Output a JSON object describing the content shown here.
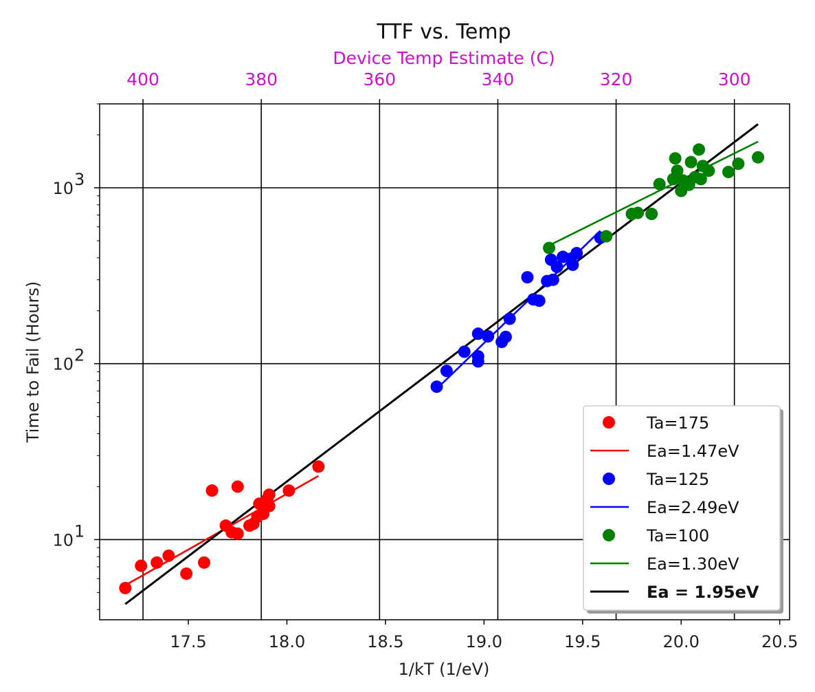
{
  "chart_data": {
    "type": "scatter",
    "title": "TTF vs. Temp",
    "xlabel": "1/kT  (1/eV)",
    "ylabel": "Time to Fail (Hours)",
    "x_range": [
      17.05,
      20.55
    ],
    "y_range": [
      3.5,
      3000
    ],
    "y_scale": "log",
    "x_ticks": [
      "17.5",
      "18.0",
      "18.5",
      "19.0",
      "19.5",
      "20.0",
      "20.5"
    ],
    "y_ticks": [
      {
        "value": 10,
        "base": "10",
        "exp": "1"
      },
      {
        "value": 100,
        "base": "10",
        "exp": "2"
      },
      {
        "value": 1000,
        "base": "10",
        "exp": "3"
      }
    ],
    "top_axis": {
      "label": "Device Temp Estimate (C)",
      "color": "#cc11cc",
      "ticks": [
        {
          "label": "400",
          "x": 17.27
        },
        {
          "label": "380",
          "x": 17.87
        },
        {
          "label": "360",
          "x": 18.47
        },
        {
          "label": "340",
          "x": 19.07
        },
        {
          "label": "320",
          "x": 19.67
        },
        {
          "label": "300",
          "x": 20.27
        }
      ]
    },
    "grid": true,
    "legend_position": "lower right",
    "series": [
      {
        "name": "Ta=175",
        "color": "#ff0000",
        "points": [
          [
            17.18,
            5.3
          ],
          [
            17.26,
            7.1
          ],
          [
            17.34,
            7.4
          ],
          [
            17.4,
            8.1
          ],
          [
            17.49,
            6.4
          ],
          [
            17.58,
            7.4
          ],
          [
            17.62,
            19.0
          ],
          [
            17.69,
            12.0
          ],
          [
            17.72,
            11.0
          ],
          [
            17.75,
            10.8
          ],
          [
            17.75,
            20.0
          ],
          [
            17.81,
            12.0
          ],
          [
            17.83,
            12.3
          ],
          [
            17.85,
            13.5
          ],
          [
            17.86,
            16.0
          ],
          [
            17.88,
            14.0
          ],
          [
            17.9,
            17.0
          ],
          [
            17.91,
            18.0
          ],
          [
            17.91,
            15.5
          ],
          [
            18.01,
            19.0
          ],
          [
            18.16,
            26.0
          ]
        ]
      },
      {
        "name": "Ta=125",
        "color": "#0000ff",
        "points": [
          [
            18.76,
            74
          ],
          [
            18.81,
            91
          ],
          [
            18.9,
            117
          ],
          [
            18.97,
            103
          ],
          [
            18.97,
            110
          ],
          [
            18.97,
            148
          ],
          [
            19.02,
            143
          ],
          [
            19.09,
            133
          ],
          [
            19.11,
            142
          ],
          [
            19.13,
            180
          ],
          [
            19.22,
            310
          ],
          [
            19.25,
            232
          ],
          [
            19.28,
            228
          ],
          [
            19.32,
            295
          ],
          [
            19.34,
            390
          ],
          [
            19.35,
            300
          ],
          [
            19.37,
            355
          ],
          [
            19.4,
            405
          ],
          [
            19.44,
            395
          ],
          [
            19.45,
            365
          ],
          [
            19.47,
            425
          ],
          [
            19.59,
            520
          ]
        ]
      },
      {
        "name": "Ta=100",
        "color": "#008000",
        "points": [
          [
            19.33,
            455
          ],
          [
            19.62,
            530
          ],
          [
            19.75,
            710
          ],
          [
            19.78,
            720
          ],
          [
            19.85,
            710
          ],
          [
            19.89,
            1050
          ],
          [
            19.96,
            1120
          ],
          [
            19.97,
            1470
          ],
          [
            19.98,
            1250
          ],
          [
            20.0,
            960
          ],
          [
            20.01,
            1100
          ],
          [
            20.04,
            1040
          ],
          [
            20.05,
            1400
          ],
          [
            20.07,
            1150
          ],
          [
            20.09,
            1650
          ],
          [
            20.1,
            1120
          ],
          [
            20.11,
            1330
          ],
          [
            20.14,
            1250
          ],
          [
            20.24,
            1230
          ],
          [
            20.29,
            1370
          ],
          [
            20.39,
            1490
          ]
        ]
      }
    ],
    "fits": [
      {
        "name": "Ea=1.47eV",
        "color": "#ff0000",
        "from": [
          17.18,
          5.5
        ],
        "to": [
          18.16,
          23
        ]
      },
      {
        "name": "Ea=2.49eV",
        "color": "#0000ff",
        "from": [
          18.76,
          72
        ],
        "to": [
          19.59,
          570
        ]
      },
      {
        "name": "Ea=1.30eV",
        "color": "#008000",
        "from": [
          19.33,
          470
        ],
        "to": [
          20.39,
          1830
        ]
      },
      {
        "name": "Ea = 1.95eV",
        "color": "#000000",
        "from": [
          17.18,
          4.3
        ],
        "to": [
          20.39,
          2300
        ]
      }
    ],
    "legend": [
      {
        "kind": "marker",
        "label": "Ta=175",
        "color": "#ff0000",
        "bold": false
      },
      {
        "kind": "line",
        "label": "Ea=1.47eV",
        "color": "#ff0000",
        "bold": false
      },
      {
        "kind": "marker",
        "label": "Ta=125",
        "color": "#0000ff",
        "bold": false
      },
      {
        "kind": "line",
        "label": "Ea=2.49eV",
        "color": "#0000ff",
        "bold": false
      },
      {
        "kind": "marker",
        "label": "Ta=100",
        "color": "#008000",
        "bold": false
      },
      {
        "kind": "line",
        "label": "Ea=1.30eV",
        "color": "#008000",
        "bold": false
      },
      {
        "kind": "line",
        "label": "Ea = 1.95eV",
        "color": "#000000",
        "bold": true
      }
    ]
  }
}
